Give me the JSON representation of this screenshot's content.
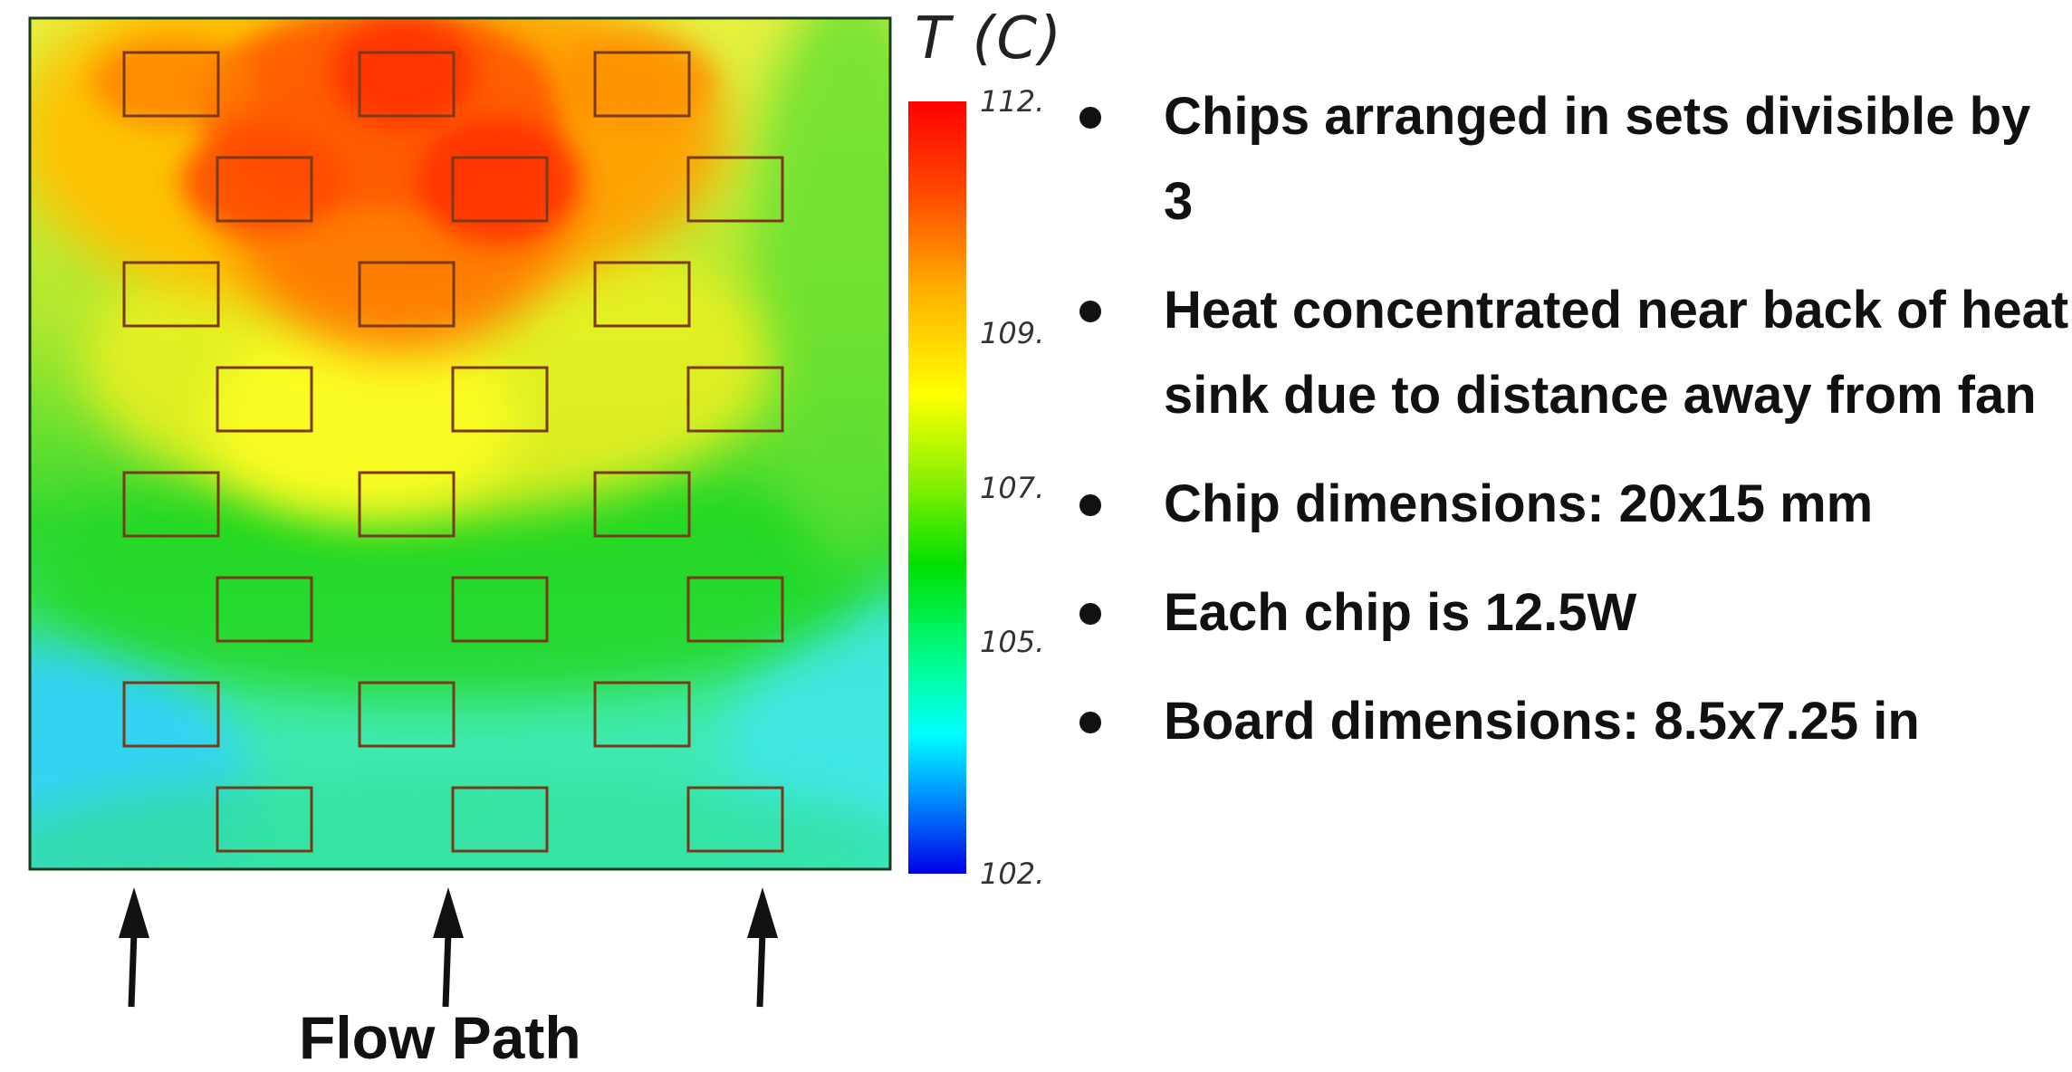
{
  "chart_data": {
    "type": "heatmap",
    "title": "",
    "colorbar_title": "T (C)",
    "colorbar_ticks": [
      {
        "value": 112,
        "label": "112."
      },
      {
        "value": 109,
        "label": "109."
      },
      {
        "value": 107,
        "label": "107."
      },
      {
        "value": 105,
        "label": "105."
      },
      {
        "value": 102,
        "label": "102."
      }
    ],
    "color_range": [
      102,
      112
    ],
    "colormap": [
      "#0000e6",
      "#00ffff",
      "#00e000",
      "#ffff00",
      "#ff0000"
    ],
    "grid": false,
    "chip_rows": 8,
    "chip_cols": 3,
    "annotation": "Flow Path",
    "arrow_count": 3
  },
  "bullets": [
    "Chips arranged in sets divisible by 3",
    "Heat concentrated near back of heat sink due to distance away from fan",
    "Chip dimensions: 20x15 mm",
    "Each chip is 12.5W",
    "Board dimensions: 8.5x7.25 in"
  ],
  "colors": {
    "chip_outline": "#7a3a1a",
    "board_border": "#1a3a1a",
    "arrow": "#111111"
  }
}
